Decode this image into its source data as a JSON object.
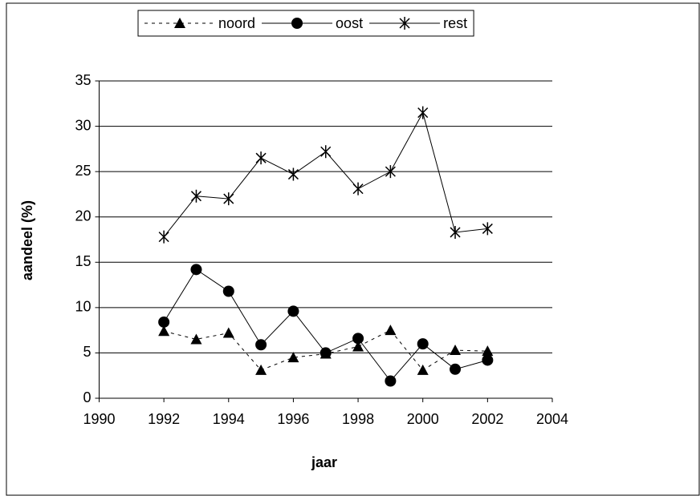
{
  "chart_data": {
    "type": "line",
    "x_label": "jaar",
    "y_label": "aandeel (%)",
    "x": [
      1992,
      1993,
      1994,
      1995,
      1996,
      1997,
      1998,
      1999,
      2000,
      2001,
      2002
    ],
    "series": [
      {
        "name": "noord",
        "color": "#000000",
        "marker": "triangle",
        "dash": true,
        "values": [
          7.4,
          6.5,
          7.2,
          3.1,
          4.5,
          4.9,
          5.7,
          7.5,
          3.1,
          5.3,
          5.2
        ]
      },
      {
        "name": "oost",
        "color": "#000000",
        "marker": "circle",
        "dash": false,
        "values": [
          8.4,
          14.2,
          11.8,
          5.9,
          9.6,
          5.0,
          6.6,
          1.9,
          6.0,
          3.2,
          4.2
        ]
      },
      {
        "name": "rest",
        "color": "#000000",
        "marker": "asterisk",
        "dash": false,
        "values": [
          17.8,
          22.3,
          22.0,
          26.5,
          24.7,
          27.2,
          23.1,
          25.0,
          31.5,
          18.3,
          18.7
        ]
      }
    ],
    "xlim": [
      1990,
      2004
    ],
    "xticks": [
      1990,
      1992,
      1994,
      1996,
      1998,
      2000,
      2002,
      2004
    ],
    "ylim": [
      0,
      35
    ],
    "yticks": [
      0,
      5,
      10,
      15,
      20,
      25,
      30,
      35
    ],
    "grid": true,
    "legend": "top"
  }
}
